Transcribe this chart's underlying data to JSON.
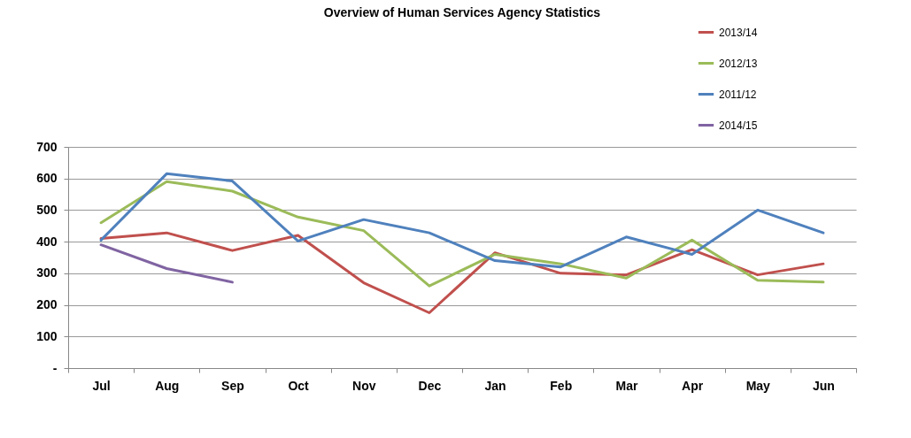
{
  "chart_data": {
    "type": "line",
    "title": "Overview of Human Services Agency Statistics",
    "categories": [
      "Jul",
      "Aug",
      "Sep",
      "Oct",
      "Nov",
      "Dec",
      "Jan",
      "Feb",
      "Mar",
      "Apr",
      "May",
      "Jun"
    ],
    "series": [
      {
        "name": "2013/14",
        "color": "#c0504d",
        "values": [
          410,
          428,
          372,
          420,
          270,
          175,
          365,
          300,
          295,
          375,
          295,
          330
        ]
      },
      {
        "name": "2012/13",
        "color": "#9bbb59",
        "values": [
          460,
          590,
          560,
          478,
          435,
          260,
          360,
          330,
          285,
          405,
          278,
          272
        ]
      },
      {
        "name": "2011/12",
        "color": "#4f81bd",
        "values": [
          405,
          615,
          592,
          402,
          470,
          428,
          340,
          320,
          415,
          360,
          500,
          428
        ]
      },
      {
        "name": "2014/15",
        "color": "#8064a2",
        "values": [
          390,
          315,
          272,
          null,
          null,
          null,
          null,
          null,
          null,
          null,
          null,
          null
        ]
      }
    ],
    "ylim": [
      0,
      700
    ],
    "yticks": [
      {
        "value": 0,
        "label": "-"
      },
      100,
      200,
      300,
      400,
      500,
      600,
      700
    ],
    "grid": "y",
    "legend": "top right",
    "line_style": "solid",
    "marker": "none"
  }
}
